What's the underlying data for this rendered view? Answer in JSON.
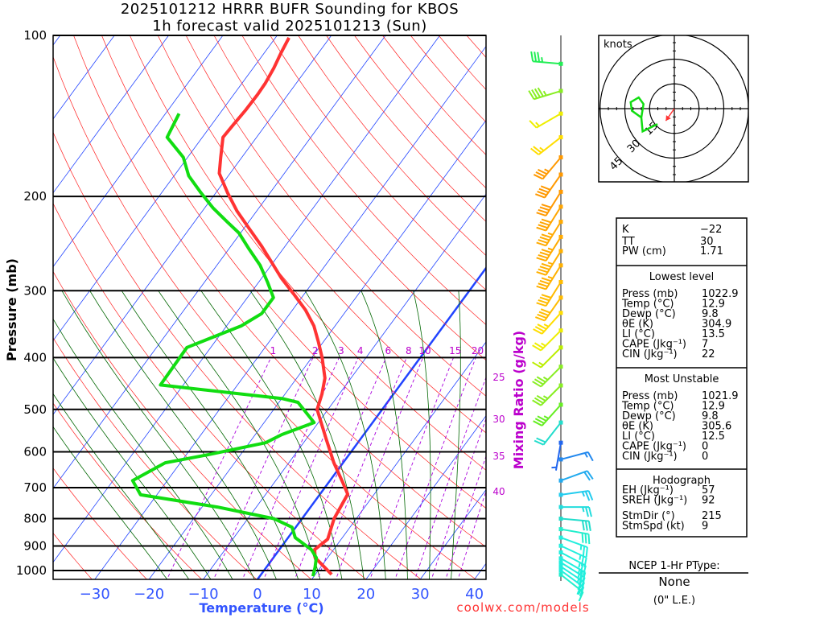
{
  "title": {
    "line1": "2025101212 HRRR BUFR Sounding for KBOS",
    "line2": "1h forecast valid 2025101213 (Sun)"
  },
  "axes": {
    "ylabel": "Pressure (mb)",
    "xlabel": "Temperature (°C)",
    "mixing_label": "Mixing Ratio (g/kg)",
    "pressure_ticks": [
      "100",
      "200",
      "300",
      "400",
      "500",
      "600",
      "700",
      "800",
      "900",
      "1000"
    ],
    "temp_ticks": [
      "−30",
      "−20",
      "−10",
      "0",
      "10",
      "20",
      "30",
      "40"
    ],
    "mixing_ticks": [
      "1",
      "2",
      "3",
      "4",
      "6",
      "8",
      "10",
      "15",
      "20",
      "25",
      "30",
      "35",
      "40"
    ]
  },
  "colors": {
    "temperature": "#ff3333",
    "dewpoint": "#11dd11",
    "isotherm": "#2244ff",
    "dry_adiabat": "#ff2222",
    "moist_adiabat": "#006600",
    "mixing_ratio": "#aa00dd",
    "storm_motion": "#ff3333"
  },
  "chart_data": {
    "type": "line",
    "title": "2025101212 HRRR BUFR Sounding for KBOS / 1h forecast valid 2025101213 (Sun)",
    "xlabel": "Temperature (°C)",
    "ylabel": "Pressure (mb)",
    "xlim": [
      -40,
      42
    ],
    "ylim": [
      1040,
      100
    ],
    "yscale": "log",
    "skew": "45deg skew-T",
    "series": [
      {
        "name": "Temperature",
        "pressure": [
          1017,
          946,
          914,
          874,
          800,
          720,
          686,
          629,
          567,
          500,
          468,
          437,
          400,
          374,
          349,
          326,
          304,
          284,
          265,
          247,
          230,
          213,
          197,
          181,
          169,
          155,
          147,
          138,
          129,
          123,
          115,
          108,
          101
        ],
        "values": [
          13.0,
          7.7,
          6.5,
          7.5,
          5.9,
          5.1,
          2.7,
          -1.7,
          -6.4,
          -12.0,
          -13.2,
          -14.8,
          -18.1,
          -20.9,
          -23.9,
          -27.6,
          -32.0,
          -36.4,
          -40.4,
          -44.5,
          -48.9,
          -53.6,
          -57.8,
          -62.0,
          -63.9,
          -66.2,
          -66.0,
          -65.7,
          -65.6,
          -65.7,
          -66.2,
          -66.9,
          -67.5
        ]
      },
      {
        "name": "Dewpoint",
        "pressure": [
          1025,
          987,
          946,
          914,
          868,
          830,
          800,
          761,
          722,
          679,
          629,
          607,
          577,
          557,
          529,
          485,
          477,
          450,
          383,
          349,
          331,
          309,
          289,
          269,
          251,
          234,
          223,
          210,
          197,
          183,
          169,
          155,
          140
        ],
        "values": [
          9.8,
          9.0,
          7.9,
          5.9,
          1.3,
          -0.7,
          -5.2,
          -17.2,
          -33.0,
          -36.4,
          -32.8,
          -25.8,
          -17.0,
          -15.1,
          -10.8,
          -16.5,
          -20.0,
          -44.2,
          -44.4,
          -37.3,
          -35.2,
          -35.2,
          -38.4,
          -42.0,
          -46.2,
          -50.3,
          -54.0,
          -58.5,
          -62.7,
          -67.3,
          -70.8,
          -76.5,
          -77.5
        ]
      }
    ],
    "winds": [
      {
        "p": 113,
        "dir": 275,
        "spd": 35,
        "color": "#22ee55"
      },
      {
        "p": 127,
        "dir": 253,
        "spd": 45,
        "color": "#88ee22"
      },
      {
        "p": 140,
        "dir": 240,
        "spd": 15,
        "color": "#eeee00"
      },
      {
        "p": 155,
        "dir": 232,
        "spd": 25,
        "color": "#ffdd00"
      },
      {
        "p": 169,
        "dir": 220,
        "spd": 35,
        "color": "#ff9900"
      },
      {
        "p": 182,
        "dir": 215,
        "spd": 40,
        "color": "#ff9900"
      },
      {
        "p": 196,
        "dir": 212,
        "spd": 40,
        "color": "#ff9900"
      },
      {
        "p": 209,
        "dir": 212,
        "spd": 40,
        "color": "#ffa500"
      },
      {
        "p": 223,
        "dir": 212,
        "spd": 45,
        "color": "#ffaa00"
      },
      {
        "p": 238,
        "dir": 212,
        "spd": 45,
        "color": "#ffaa00"
      },
      {
        "p": 253,
        "dir": 212,
        "spd": 45,
        "color": "#ffb000"
      },
      {
        "p": 269,
        "dir": 212,
        "spd": 45,
        "color": "#ffb000"
      },
      {
        "p": 289,
        "dir": 212,
        "spd": 40,
        "color": "#ffbb00"
      },
      {
        "p": 309,
        "dir": 215,
        "spd": 40,
        "color": "#ffbb00"
      },
      {
        "p": 330,
        "dir": 222,
        "spd": 35,
        "color": "#ffdd00"
      },
      {
        "p": 356,
        "dir": 225,
        "spd": 25,
        "color": "#eeee00"
      },
      {
        "p": 383,
        "dir": 225,
        "spd": 15,
        "color": "#bbee00"
      },
      {
        "p": 416,
        "dir": 225,
        "spd": 35,
        "color": "#88ee22"
      },
      {
        "p": 451,
        "dir": 225,
        "spd": 35,
        "color": "#88ee22"
      },
      {
        "p": 490,
        "dir": 222,
        "spd": 35,
        "color": "#66ee22"
      },
      {
        "p": 529,
        "dir": 218,
        "spd": 20,
        "color": "#22ddcc"
      },
      {
        "p": 577,
        "dir": 190,
        "spd": 5,
        "color": "#2266ee"
      },
      {
        "p": 620,
        "dir": 75,
        "spd": 15,
        "color": "#2288ee"
      },
      {
        "p": 679,
        "dir": 70,
        "spd": 20,
        "color": "#22aaee"
      },
      {
        "p": 722,
        "dir": 82,
        "spd": 25,
        "color": "#22ccee"
      },
      {
        "p": 761,
        "dir": 90,
        "spd": 25,
        "color": "#22dddd"
      },
      {
        "p": 800,
        "dir": 95,
        "spd": 30,
        "color": "#22ddcc"
      },
      {
        "p": 837,
        "dir": 100,
        "spd": 30,
        "color": "#22eecc"
      },
      {
        "p": 868,
        "dir": 110,
        "spd": 25,
        "color": "#22eedd"
      },
      {
        "p": 899,
        "dir": 115,
        "spd": 25,
        "color": "#22eedd"
      },
      {
        "p": 925,
        "dir": 118,
        "spd": 25,
        "color": "#22eedd"
      },
      {
        "p": 949,
        "dir": 120,
        "spd": 25,
        "color": "#22eedd"
      },
      {
        "p": 966,
        "dir": 122,
        "spd": 25,
        "color": "#22eedd"
      },
      {
        "p": 983,
        "dir": 124,
        "spd": 25,
        "color": "#22eedd"
      },
      {
        "p": 1000,
        "dir": 126,
        "spd": 20,
        "color": "#22eedd"
      },
      {
        "p": 1018,
        "dir": 128,
        "spd": 15,
        "color": "#22eecc"
      }
    ],
    "hodograph": {
      "units": "knots",
      "ring_labels": [
        "15",
        "30",
        "45"
      ],
      "rings_kt": [
        15,
        30,
        45
      ],
      "u": [
        -10.2,
        -19.2,
        -20.0,
        -25.7,
        -26.5,
        -21.6,
        -18.7,
        -20.0
      ],
      "v": [
        -9.4,
        -13.8,
        -5.4,
        -1.3,
        3.9,
        6.8,
        2.8,
        -5.4
      ],
      "storm_motion": {
        "dir": 215,
        "spd": 9
      }
    }
  },
  "hodo_label": "knots",
  "stats": {
    "top": [
      {
        "label": "K",
        "value": "−22"
      },
      {
        "label": "TT",
        "value": "30"
      },
      {
        "label": "PW (cm)",
        "value": "1.71"
      }
    ],
    "sections": [
      {
        "heading": "Lowest level",
        "rows": [
          {
            "label": "Press (mb)",
            "value": "1022.9"
          },
          {
            "label": "Temp (°C)",
            "value": "12.9"
          },
          {
            "label": "Dewp (°C)",
            "value": "9.8"
          },
          {
            "label": "θE (K)",
            "value": "304.9"
          },
          {
            "label": "LI (°C)",
            "value": "13.5"
          },
          {
            "label": "CAPE (Jkg⁻¹)",
            "value": "7"
          },
          {
            "label": "CIN (Jkg⁻¹)",
            "value": "22"
          }
        ]
      },
      {
        "heading": "Most Unstable",
        "rows": [
          {
            "label": "Press (mb)",
            "value": "1021.9"
          },
          {
            "label": "Temp (°C)",
            "value": "12.9"
          },
          {
            "label": "Dewp (°C)",
            "value": "9.8"
          },
          {
            "label": "θE (K)",
            "value": "305.6"
          },
          {
            "label": "LI (°C)",
            "value": "12.5"
          },
          {
            "label": "CAPE (Jkg⁻¹)",
            "value": "0"
          },
          {
            "label": "CIN (Jkg⁻¹)",
            "value": "0"
          }
        ]
      },
      {
        "heading": "Hodograph",
        "rows": [
          {
            "label": "EH (Jkg⁻¹)",
            "value": "57"
          },
          {
            "label": "SREH (Jkg⁻¹)",
            "value": "92"
          },
          {
            "label": "StmDir (°)",
            "value": "215"
          },
          {
            "label": "StmSpd (kt)",
            "value": "9"
          }
        ]
      }
    ]
  },
  "ptype": {
    "heading": "NCEP 1-Hr PType:",
    "value": "None",
    "accum": "(0\" L.E.)"
  },
  "credit": "coolwx.com/models"
}
